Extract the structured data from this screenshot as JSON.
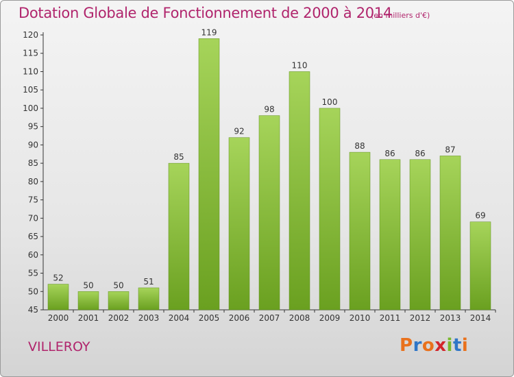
{
  "header": {
    "title": "Dotation Globale de Fonctionnement de 2000 à 2014",
    "unit": "(en milliers d'€)"
  },
  "footer": {
    "town": "VILLEROY",
    "logo_text": "Proxiti",
    "logo_colors": [
      "#e9711c",
      "#2f76c7",
      "#e9711c",
      "#d2262c",
      "#79b82c",
      "#2f76c7",
      "#e9711c"
    ]
  },
  "colors": {
    "bar_light": "#a6d45a",
    "bar_dark": "#6aa020",
    "axis": "#333333",
    "title": "#b0246c"
  },
  "chart_data": {
    "type": "bar",
    "title": "Dotation Globale de Fonctionnement de 2000 à 2014",
    "subtitle": "(en milliers d'€)",
    "categories": [
      "2000",
      "2001",
      "2002",
      "2003",
      "2004",
      "2005",
      "2006",
      "2007",
      "2008",
      "2009",
      "2010",
      "2011",
      "2012",
      "2013",
      "2014"
    ],
    "values": [
      52,
      50,
      50,
      51,
      85,
      119,
      92,
      98,
      110,
      100,
      88,
      86,
      86,
      87,
      69
    ],
    "ylim": [
      45,
      120
    ],
    "ytick_step": 5,
    "grid": false,
    "xlabel": "",
    "ylabel": ""
  }
}
